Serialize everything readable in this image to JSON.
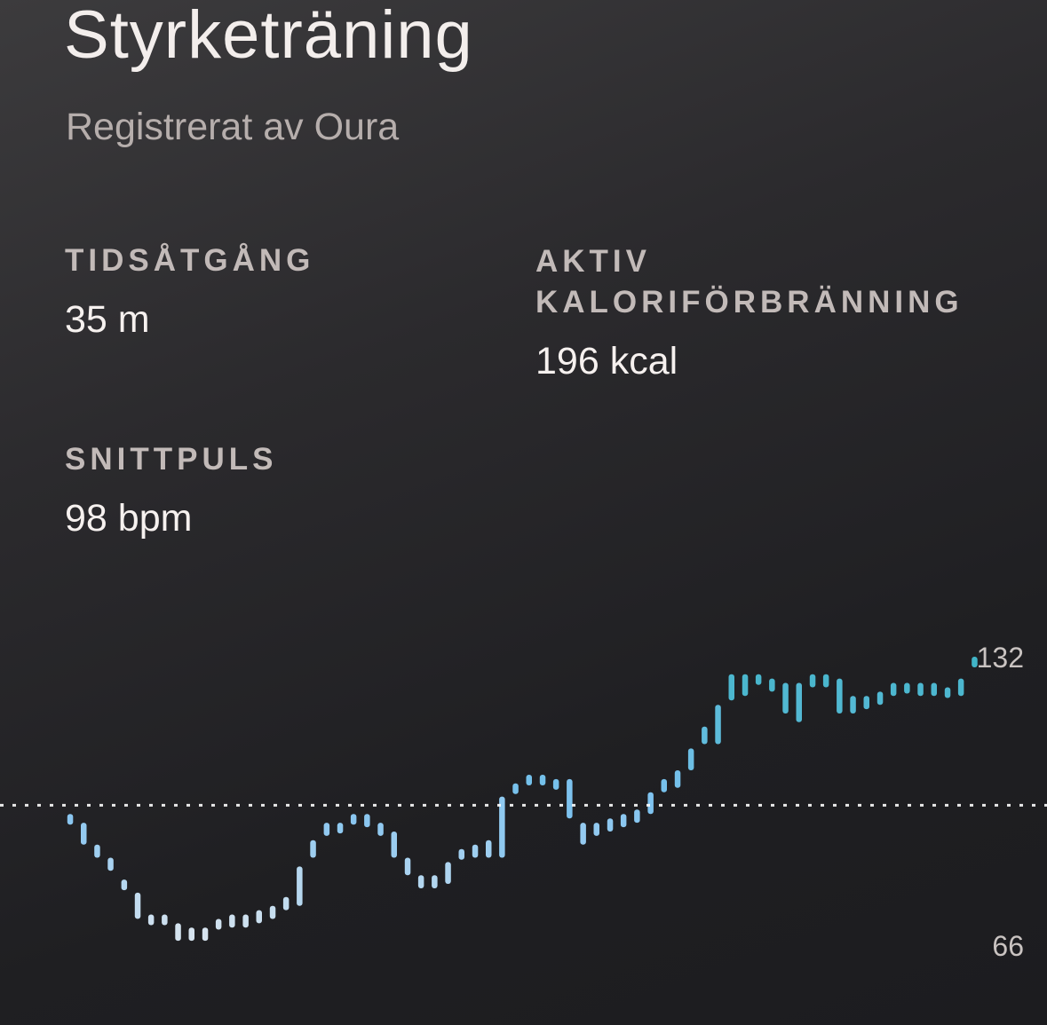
{
  "workout": {
    "title": "Styrketräning",
    "subtitle": "Registrerat av Oura"
  },
  "metrics": {
    "duration": {
      "label": "TIDSÅTGÅNG",
      "value": "35 m"
    },
    "active_calories": {
      "label": "AKTIV KALORIFÖRBRÄNNING",
      "value": "196 kcal"
    },
    "avg_hr": {
      "label": "SNITTPULS",
      "value": "98 bpm"
    }
  },
  "colors": {
    "low": "#dde6ef",
    "mid": "#7ec2f0",
    "high": "#3fb4c6",
    "reference_line": "#ffffff"
  },
  "chart_data": {
    "type": "bar",
    "title": "",
    "xlabel": "",
    "ylabel": "",
    "ylim": [
      66,
      132
    ],
    "y_ticks": [
      "132",
      "66"
    ],
    "reference_line": {
      "value": 98,
      "style": "dotted"
    },
    "grid": false,
    "series": [
      {
        "values": [
          [
            96,
            94
          ],
          [
            94,
            89
          ],
          [
            89,
            86
          ],
          [
            86,
            83
          ],
          [
            81,
            79
          ],
          [
            78,
            72
          ],
          [
            73,
            71
          ],
          [
            73,
            71
          ],
          [
            71,
            67
          ],
          [
            70,
            67
          ],
          [
            70,
            67
          ],
          [
            72,
            70
          ],
          [
            73,
            70
          ],
          [
            73,
            70
          ],
          [
            74,
            71
          ],
          [
            75,
            72
          ],
          [
            77,
            74
          ],
          [
            84,
            75
          ],
          [
            90,
            86
          ],
          [
            94,
            91
          ],
          [
            94,
            92
          ],
          [
            96,
            94
          ],
          [
            96,
            93
          ],
          [
            94,
            91
          ],
          [
            92,
            86
          ],
          [
            86,
            82
          ],
          [
            82,
            79
          ],
          [
            82,
            79
          ],
          [
            85,
            80
          ],
          [
            88,
            86
          ],
          [
            89,
            86
          ],
          [
            90,
            86
          ],
          [
            100,
            86
          ],
          [
            103,
            101
          ],
          [
            105,
            103
          ],
          [
            105,
            103
          ],
          [
            104,
            102
          ],
          [
            104,
            95
          ],
          [
            94,
            89
          ],
          [
            94,
            91
          ],
          [
            95,
            92
          ],
          [
            96,
            93
          ],
          [
            97,
            94
          ],
          [
            101,
            96
          ],
          [
            104,
            101
          ],
          [
            106,
            102
          ],
          [
            111,
            106
          ],
          [
            116,
            112
          ],
          [
            121,
            112
          ],
          [
            128,
            122
          ],
          [
            128,
            123
          ],
          [
            128,
            126
          ],
          [
            127,
            124
          ],
          [
            126,
            119
          ],
          [
            126,
            117
          ],
          [
            128,
            125
          ],
          [
            128,
            125
          ],
          [
            127,
            119
          ],
          [
            123,
            119
          ],
          [
            123,
            120
          ],
          [
            124,
            121
          ],
          [
            126,
            123
          ],
          [
            126,
            124
          ],
          [
            126,
            123
          ],
          [
            126,
            123
          ],
          [
            125,
            123
          ],
          [
            127,
            123
          ],
          [
            132,
            130
          ]
        ]
      }
    ]
  }
}
